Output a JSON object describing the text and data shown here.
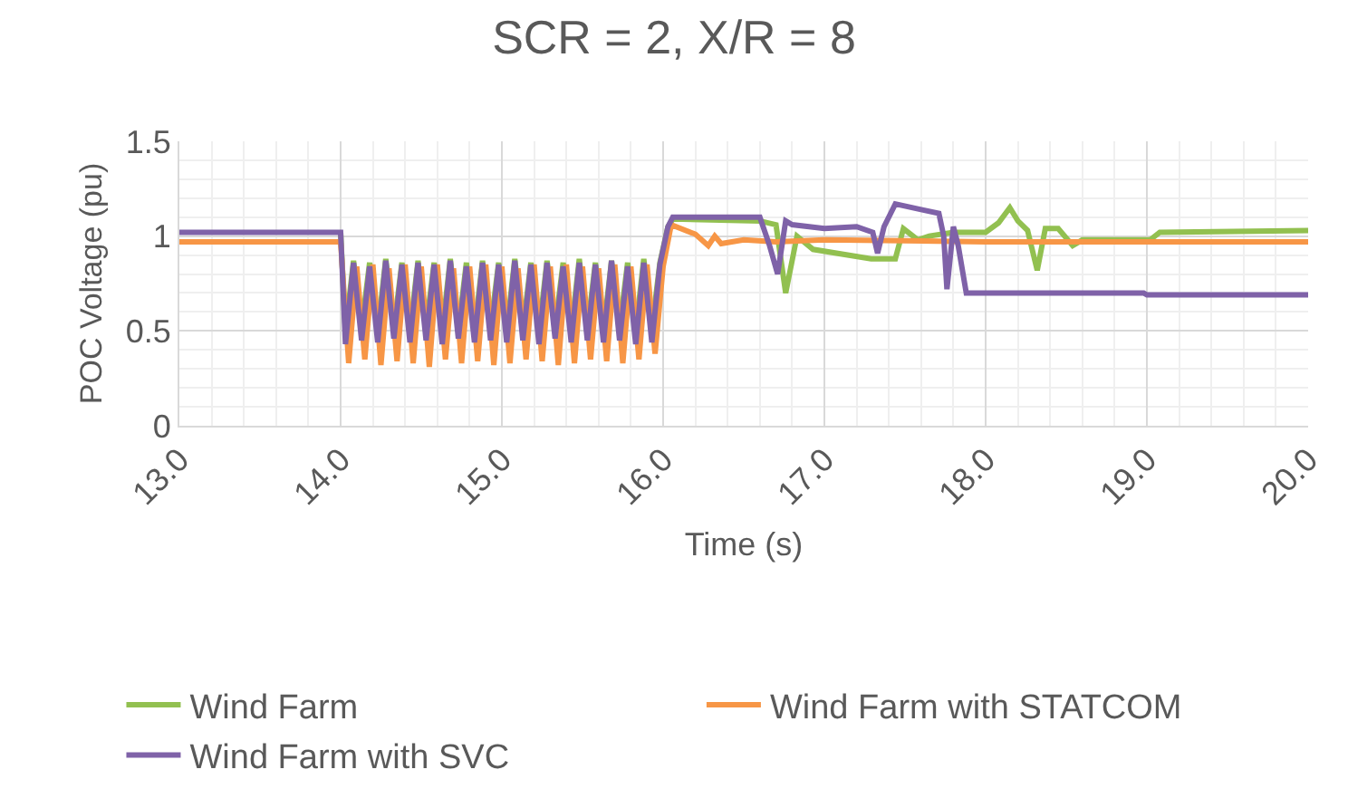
{
  "chart_data": {
    "type": "line",
    "title": "SCR = 2, X/R = 8",
    "xlabel": "Time (s)",
    "ylabel": "POC Voltage (pu)",
    "xlim": [
      13,
      20
    ],
    "xticks": [
      {
        "value": 13,
        "label": "13.0"
      },
      {
        "value": 14,
        "label": "14.0"
      },
      {
        "value": 15,
        "label": "15.0"
      },
      {
        "value": 16,
        "label": "16.0"
      },
      {
        "value": 17,
        "label": "17.0"
      },
      {
        "value": 18,
        "label": "18.0"
      },
      {
        "value": 19,
        "label": "19.0"
      },
      {
        "value": 20,
        "label": "20.0"
      }
    ],
    "ylim": [
      0,
      1.5
    ],
    "yticks": [
      0,
      0.5,
      1,
      1.5
    ],
    "grid": true,
    "legend": "bottom",
    "marker": "none",
    "line_style": "solid",
    "series": [
      {
        "name": "Wind Farm",
        "color": "#92c050",
        "x": [
          14.0,
          14.03,
          14.08,
          14.13,
          14.18,
          14.23,
          14.28,
          14.33,
          14.38,
          14.43,
          14.48,
          14.53,
          14.58,
          14.63,
          14.68,
          14.73,
          14.78,
          14.83,
          14.88,
          14.93,
          14.98,
          15.03,
          15.08,
          15.13,
          15.18,
          15.23,
          15.28,
          15.33,
          15.38,
          15.43,
          15.48,
          15.53,
          15.58,
          15.63,
          15.68,
          15.73,
          15.78,
          15.83,
          15.88,
          15.93,
          15.98,
          16.03,
          16.06,
          16.6,
          16.7,
          16.76,
          16.83,
          16.93,
          17.29,
          17.44,
          17.49,
          17.58,
          17.65,
          17.8,
          18.0,
          18.08,
          18.15,
          18.2,
          18.26,
          18.32,
          18.37,
          18.45,
          18.54,
          18.6,
          19.02,
          19.08,
          20.0
        ],
        "values": [
          1.02,
          0.5,
          0.87,
          0.52,
          0.86,
          0.5,
          0.88,
          0.51,
          0.86,
          0.5,
          0.87,
          0.52,
          0.86,
          0.5,
          0.88,
          0.51,
          0.86,
          0.5,
          0.87,
          0.52,
          0.86,
          0.5,
          0.88,
          0.51,
          0.86,
          0.5,
          0.87,
          0.52,
          0.86,
          0.5,
          0.88,
          0.51,
          0.86,
          0.5,
          0.87,
          0.52,
          0.86,
          0.5,
          0.88,
          0.51,
          0.86,
          1.05,
          1.09,
          1.08,
          1.06,
          0.7,
          1.0,
          0.93,
          0.88,
          0.88,
          1.04,
          0.98,
          1.0,
          1.02,
          1.02,
          1.07,
          1.15,
          1.08,
          1.03,
          0.82,
          1.04,
          1.04,
          0.95,
          0.98,
          0.98,
          1.02,
          1.03
        ]
      },
      {
        "name": "Wind Farm with STATCOM",
        "color": "#f79646",
        "x": [
          13.0,
          14.0,
          14.05,
          14.1,
          14.15,
          14.2,
          14.25,
          14.3,
          14.35,
          14.4,
          14.45,
          14.5,
          14.55,
          14.6,
          14.65,
          14.7,
          14.75,
          14.8,
          14.85,
          14.9,
          14.95,
          15.0,
          15.05,
          15.1,
          15.15,
          15.2,
          15.25,
          15.3,
          15.35,
          15.4,
          15.45,
          15.5,
          15.55,
          15.6,
          15.65,
          15.7,
          15.75,
          15.8,
          15.85,
          15.9,
          15.95,
          16.0,
          16.05,
          16.2,
          16.28,
          16.32,
          16.36,
          16.5,
          16.7,
          17.0,
          18.0,
          20.0
        ],
        "values": [
          0.97,
          0.97,
          0.33,
          0.84,
          0.35,
          0.85,
          0.32,
          0.83,
          0.34,
          0.85,
          0.33,
          0.84,
          0.31,
          0.85,
          0.35,
          0.83,
          0.33,
          0.84,
          0.34,
          0.85,
          0.32,
          0.84,
          0.33,
          0.83,
          0.35,
          0.85,
          0.34,
          0.84,
          0.32,
          0.85,
          0.33,
          0.84,
          0.35,
          0.83,
          0.34,
          0.85,
          0.33,
          0.84,
          0.35,
          0.85,
          0.38,
          0.84,
          1.06,
          1.01,
          0.95,
          1.0,
          0.96,
          0.98,
          0.97,
          0.98,
          0.97,
          0.97
        ]
      },
      {
        "name": "Wind Farm with SVC",
        "color": "#7f62a8",
        "x": [
          13.0,
          14.0,
          14.03,
          14.08,
          14.13,
          14.18,
          14.23,
          14.28,
          14.33,
          14.38,
          14.43,
          14.48,
          14.53,
          14.58,
          14.63,
          14.68,
          14.73,
          14.78,
          14.83,
          14.88,
          14.93,
          14.98,
          15.03,
          15.08,
          15.13,
          15.18,
          15.23,
          15.28,
          15.33,
          15.38,
          15.43,
          15.48,
          15.53,
          15.58,
          15.63,
          15.68,
          15.73,
          15.78,
          15.83,
          15.88,
          15.93,
          15.98,
          16.03,
          16.06,
          16.6,
          16.66,
          16.71,
          16.76,
          16.8,
          17.0,
          17.2,
          17.3,
          17.33,
          17.37,
          17.44,
          17.6,
          17.71,
          17.74,
          17.76,
          17.8,
          17.83,
          17.88,
          18.98,
          19.0,
          20.0
        ],
        "values": [
          1.02,
          1.02,
          0.43,
          0.86,
          0.45,
          0.84,
          0.44,
          0.87,
          0.46,
          0.85,
          0.44,
          0.86,
          0.45,
          0.85,
          0.43,
          0.87,
          0.46,
          0.84,
          0.44,
          0.86,
          0.45,
          0.85,
          0.44,
          0.87,
          0.45,
          0.85,
          0.43,
          0.86,
          0.46,
          0.84,
          0.44,
          0.86,
          0.45,
          0.85,
          0.44,
          0.87,
          0.45,
          0.84,
          0.43,
          0.86,
          0.44,
          0.85,
          1.05,
          1.1,
          1.1,
          0.95,
          0.8,
          1.08,
          1.06,
          1.04,
          1.05,
          1.02,
          0.91,
          1.05,
          1.17,
          1.14,
          1.12,
          1.0,
          0.72,
          1.05,
          0.95,
          0.7,
          0.7,
          0.69,
          0.69
        ]
      }
    ]
  }
}
